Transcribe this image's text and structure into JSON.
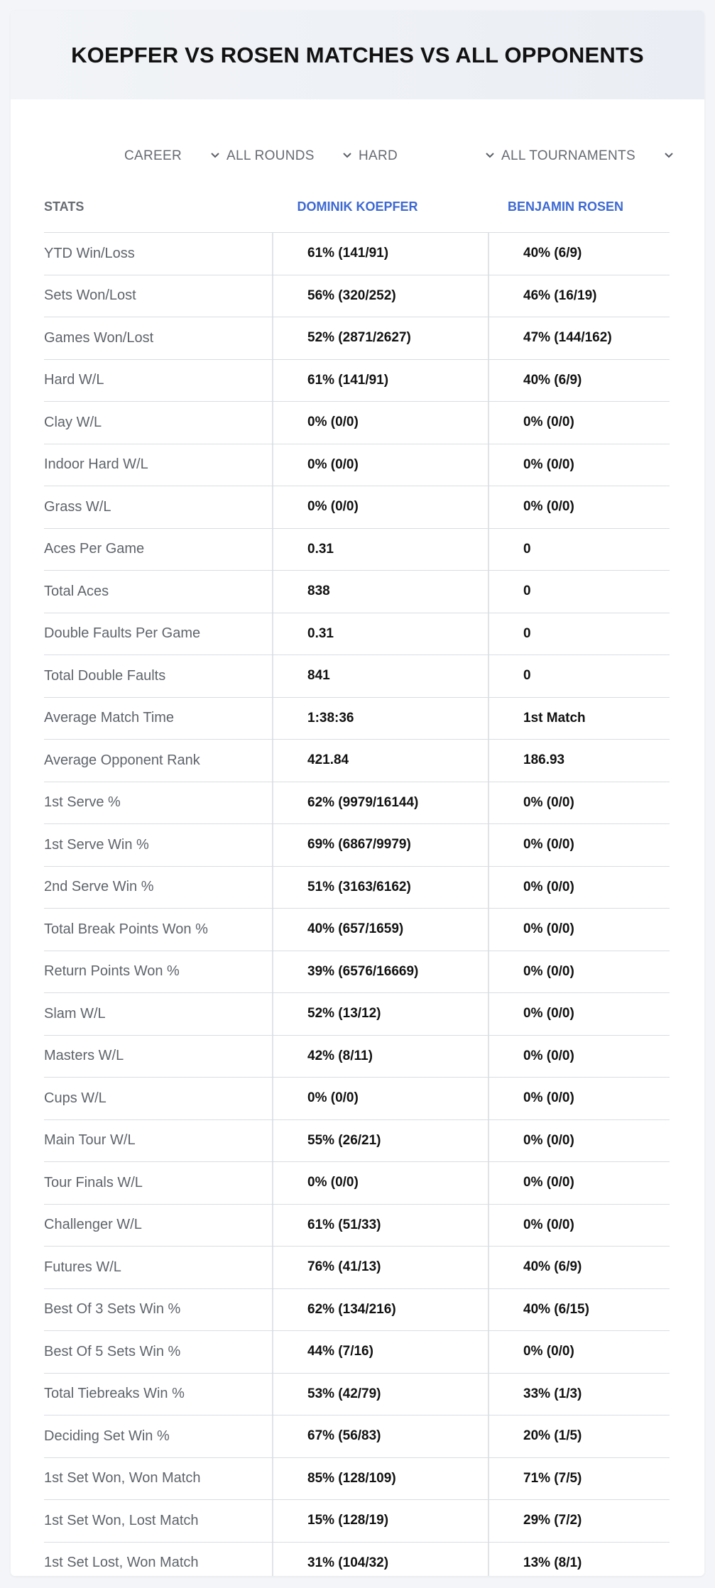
{
  "title": "KOEPFER VS ROSEN MATCHES VS ALL OPPONENTS",
  "filters": [
    {
      "label": "CAREER"
    },
    {
      "label": "ALL ROUNDS"
    },
    {
      "label": "HARD"
    },
    {
      "label": "ALL TOURNAMENTS"
    }
  ],
  "table": {
    "headers": {
      "stats": "STATS",
      "player1": "DOMINIK KOEPFER",
      "player2": "BENJAMIN ROSEN"
    },
    "rows": [
      {
        "stat": "YTD Win/Loss",
        "p1": "61% (141/91)",
        "p2": "40% (6/9)"
      },
      {
        "stat": "Sets Won/Lost",
        "p1": "56% (320/252)",
        "p2": "46% (16/19)"
      },
      {
        "stat": "Games Won/Lost",
        "p1": "52% (2871/2627)",
        "p2": "47% (144/162)"
      },
      {
        "stat": "Hard W/L",
        "p1": "61% (141/91)",
        "p2": "40% (6/9)"
      },
      {
        "stat": "Clay W/L",
        "p1": "0% (0/0)",
        "p2": "0% (0/0)"
      },
      {
        "stat": "Indoor Hard W/L",
        "p1": "0% (0/0)",
        "p2": "0% (0/0)"
      },
      {
        "stat": "Grass W/L",
        "p1": "0% (0/0)",
        "p2": "0% (0/0)"
      },
      {
        "stat": "Aces Per Game",
        "p1": "0.31",
        "p2": "0"
      },
      {
        "stat": "Total Aces",
        "p1": "838",
        "p2": "0"
      },
      {
        "stat": "Double Faults Per Game",
        "p1": "0.31",
        "p2": "0"
      },
      {
        "stat": "Total Double Faults",
        "p1": "841",
        "p2": "0"
      },
      {
        "stat": "Average Match Time",
        "p1": "1:38:36",
        "p2": "1st Match"
      },
      {
        "stat": "Average Opponent Rank",
        "p1": "421.84",
        "p2": "186.93"
      },
      {
        "stat": "1st Serve %",
        "p1": "62% (9979/16144)",
        "p2": "0% (0/0)"
      },
      {
        "stat": "1st Serve Win %",
        "p1": "69% (6867/9979)",
        "p2": "0% (0/0)"
      },
      {
        "stat": "2nd Serve Win %",
        "p1": "51% (3163/6162)",
        "p2": "0% (0/0)"
      },
      {
        "stat": "Total Break Points Won %",
        "p1": "40% (657/1659)",
        "p2": "0% (0/0)"
      },
      {
        "stat": "Return Points Won %",
        "p1": "39% (6576/16669)",
        "p2": "0% (0/0)"
      },
      {
        "stat": "Slam W/L",
        "p1": "52% (13/12)",
        "p2": "0% (0/0)"
      },
      {
        "stat": "Masters W/L",
        "p1": "42% (8/11)",
        "p2": "0% (0/0)"
      },
      {
        "stat": "Cups W/L",
        "p1": "0% (0/0)",
        "p2": "0% (0/0)"
      },
      {
        "stat": "Main Tour W/L",
        "p1": "55% (26/21)",
        "p2": "0% (0/0)"
      },
      {
        "stat": "Tour Finals W/L",
        "p1": "0% (0/0)",
        "p2": "0% (0/0)"
      },
      {
        "stat": "Challenger W/L",
        "p1": "61% (51/33)",
        "p2": "0% (0/0)"
      },
      {
        "stat": "Futures W/L",
        "p1": "76% (41/13)",
        "p2": "40% (6/9)"
      },
      {
        "stat": "Best Of 3 Sets Win %",
        "p1": "62% (134/216)",
        "p2": "40% (6/15)"
      },
      {
        "stat": "Best Of 5 Sets Win %",
        "p1": "44% (7/16)",
        "p2": "0% (0/0)"
      },
      {
        "stat": "Total Tiebreaks Win %",
        "p1": "53% (42/79)",
        "p2": "33% (1/3)"
      },
      {
        "stat": "Deciding Set Win %",
        "p1": "67% (56/83)",
        "p2": "20% (1/5)"
      },
      {
        "stat": "1st Set Won, Won Match",
        "p1": "85% (128/109)",
        "p2": "71% (7/5)"
      },
      {
        "stat": "1st Set Won, Lost Match",
        "p1": "15% (128/19)",
        "p2": "29% (7/2)"
      },
      {
        "stat": "1st Set Lost, Won Match",
        "p1": "31% (104/32)",
        "p2": "13% (8/1)"
      }
    ]
  },
  "colors": {
    "accent": "#3d69d3",
    "text": "#111111",
    "muted": "#5f646a",
    "border": "#d9dde2",
    "header_bg": "#eef1f5"
  }
}
